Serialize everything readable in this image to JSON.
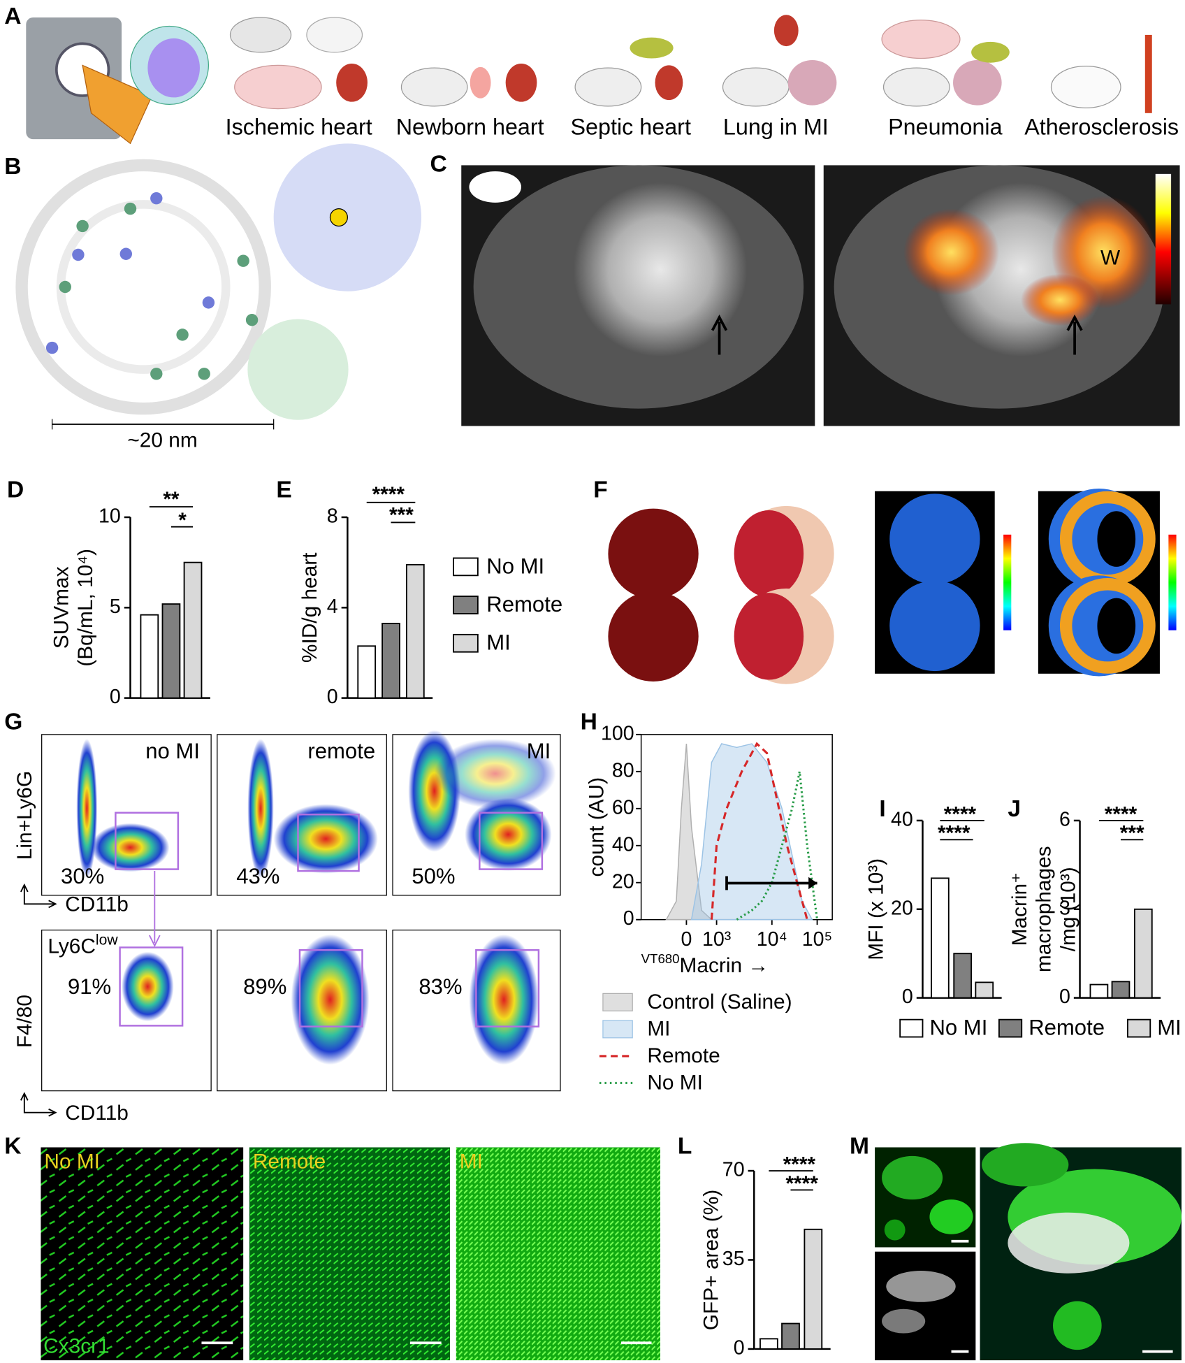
{
  "panel_labels": [
    "A",
    "B",
    "C",
    "D",
    "E",
    "F",
    "G",
    "H",
    "I",
    "J",
    "K",
    "L",
    "M"
  ],
  "panel_a": {
    "labels": [
      "Ischemic heart",
      "Newborn heart",
      "Septic heart",
      "Lung in MI",
      "Pneumonia",
      "Atherosclerosis"
    ]
  },
  "panel_b": {
    "scale": "~20 nm"
  },
  "panel_c": {
    "label": "W"
  },
  "panel_g": {
    "top_titles": [
      "no MI",
      "remote",
      "MI"
    ],
    "top_percents": [
      "30%",
      "43%",
      "50%"
    ],
    "bottom_percents": [
      "91%",
      "89%",
      "83%"
    ],
    "top_ylabel": "Lin+Ly6G",
    "top_xlabel": "CD11b",
    "bottom_title": [
      "Ly6C",
      "low"
    ],
    "bottom_ylabel": "F4/80",
    "bottom_xlabel": "CD11b"
  },
  "panel_k": {
    "titles": [
      "No MI",
      "Remote",
      "MI"
    ],
    "stain": "Cx3cr1"
  },
  "legends": [
    {
      "labels": [
        "No MI",
        "Remote",
        "MI"
      ],
      "colors": [
        "#ffffff",
        "#808080",
        "#d9d9d9"
      ]
    },
    {
      "labels": [
        "No MI",
        "Remote",
        "MI"
      ],
      "colors": [
        "#ffffff",
        "#808080",
        "#d9d9d9"
      ]
    }
  ],
  "chart_data": [
    {
      "type": "bar",
      "ylabel": [
        "SUVmax",
        "(Bq/mL, 10⁴)"
      ],
      "categories": [
        null,
        null,
        null
      ],
      "values": [
        4.6,
        5.2,
        7.5
      ],
      "colors": [
        "#ffffff",
        "#808080",
        "#d9d9d9"
      ],
      "ylim": [
        0,
        10
      ],
      "yticks": [
        0,
        5,
        10
      ],
      "annotations": [
        "**",
        "*"
      ]
    },
    {
      "type": "bar",
      "ylabel": [
        "%ID/g heart"
      ],
      "categories": [
        null,
        null,
        null
      ],
      "values": [
        2.3,
        3.3,
        5.9
      ],
      "colors": [
        "#ffffff",
        "#808080",
        "#d9d9d9"
      ],
      "ylim": [
        0,
        8
      ],
      "yticks": [
        0,
        4,
        8
      ],
      "annotations": [
        "****",
        "***"
      ]
    },
    {
      "type": "line",
      "ylabel": "count (AU)",
      "xlabel": [
        "VT680",
        "Macrin →"
      ],
      "xlim": [
        1.6,
        5.4
      ],
      "xticks": [
        {
          "value": 2.5,
          "label": "0"
        },
        {
          "value": 3.1,
          "label": "10³"
        },
        {
          "value": 4.2,
          "label": "10⁴"
        },
        {
          "value": 5.1,
          "label": "10⁵"
        }
      ],
      "ylim": [
        0,
        100
      ],
      "yticks": [
        0,
        20,
        40,
        60,
        80,
        100
      ],
      "series": [
        {
          "name": "Control (Saline)",
          "color": "#b0b0b0",
          "style": "fill",
          "x": [
            2.1,
            2.3,
            2.4,
            2.5,
            2.6,
            2.8,
            3.0
          ],
          "values": [
            0,
            10,
            60,
            95,
            50,
            5,
            0
          ]
        },
        {
          "name": "MI",
          "color": "#9cc3e5",
          "style": "fill",
          "x": [
            2.6,
            2.8,
            3.0,
            3.2,
            3.5,
            3.8,
            4.1,
            4.4,
            4.6,
            4.8,
            5.0
          ],
          "values": [
            0,
            30,
            85,
            95,
            93,
            95,
            85,
            60,
            35,
            10,
            0
          ]
        },
        {
          "name": "Remote",
          "color": "#d62728",
          "style": "dashed",
          "x": [
            3.0,
            3.1,
            3.3,
            3.6,
            3.9,
            4.1,
            4.3,
            4.5,
            4.7,
            4.9
          ],
          "values": [
            0,
            40,
            60,
            80,
            95,
            90,
            65,
            40,
            20,
            0
          ]
        },
        {
          "name": "No MI",
          "color": "#2a9d4a",
          "style": "dotted",
          "x": [
            3.5,
            3.8,
            4.0,
            4.2,
            4.4,
            4.6,
            4.75,
            4.9,
            5.1
          ],
          "values": [
            0,
            5,
            10,
            20,
            40,
            60,
            80,
            40,
            0
          ]
        }
      ]
    },
    {
      "type": "bar",
      "ylabel": [
        "MFI (x 10³)"
      ],
      "categories": [
        null,
        null,
        null
      ],
      "values": [
        27,
        10,
        3.5
      ],
      "colors": [
        "#ffffff",
        "#808080",
        "#d9d9d9"
      ],
      "ylim": [
        0,
        40
      ],
      "yticks": [
        0,
        20,
        40
      ],
      "annotations": [
        "****",
        "****"
      ]
    },
    {
      "type": "bar",
      "ylabel": [
        "Macrin⁺",
        "macrophages",
        "/mg (10³)"
      ],
      "categories": [
        null,
        null,
        null
      ],
      "values": [
        0.45,
        0.55,
        3.0
      ],
      "colors": [
        "#ffffff",
        "#808080",
        "#d9d9d9"
      ],
      "ylim": [
        0,
        6
      ],
      "yticks": [
        0,
        3,
        6
      ],
      "annotations": [
        "****",
        "***"
      ]
    },
    {
      "type": "bar",
      "ylabel": [
        "GFP+ area (%)"
      ],
      "categories": [
        null,
        null,
        null
      ],
      "values": [
        4,
        10,
        47
      ],
      "colors": [
        "#ffffff",
        "#808080",
        "#d9d9d9"
      ],
      "ylim": [
        0,
        70
      ],
      "yticks": [
        0,
        35,
        70
      ],
      "annotations": [
        "****",
        "****"
      ]
    }
  ]
}
